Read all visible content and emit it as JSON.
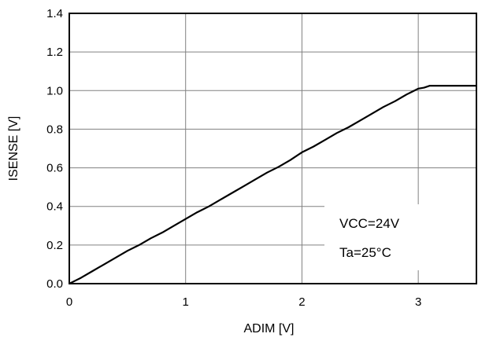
{
  "chart_data": {
    "type": "line",
    "xlabel": "ADIM [V]",
    "ylabel": "ISENSE [V]",
    "xlim": [
      0,
      3.5
    ],
    "ylim": [
      0,
      1.4
    ],
    "xticks": [
      0,
      1,
      2,
      3
    ],
    "xtick_labels": [
      "0",
      "1",
      "2",
      "3"
    ],
    "yticks": [
      0.0,
      0.2,
      0.4,
      0.6,
      0.8,
      1.0,
      1.2,
      1.4
    ],
    "ytick_labels": [
      "0.0",
      "0.2",
      "0.4",
      "0.6",
      "0.8",
      "1.0",
      "1.2",
      "1.4"
    ],
    "grid": true,
    "annotations": [
      "VCC=24V",
      "Ta=25°C"
    ],
    "series": [
      {
        "x": [
          0,
          0.05,
          0.1,
          0.2,
          0.3,
          0.4,
          0.5,
          0.6,
          0.7,
          0.8,
          0.9,
          1.0,
          1.1,
          1.2,
          1.3,
          1.4,
          1.5,
          1.6,
          1.7,
          1.8,
          1.9,
          2.0,
          2.1,
          2.2,
          2.3,
          2.4,
          2.5,
          2.6,
          2.7,
          2.8,
          2.9,
          2.95,
          3.0,
          3.05,
          3.1,
          3.2,
          3.3,
          3.4,
          3.5
        ],
        "y": [
          0.0,
          0.015,
          0.03,
          0.065,
          0.1,
          0.135,
          0.17,
          0.2,
          0.235,
          0.265,
          0.3,
          0.335,
          0.37,
          0.4,
          0.435,
          0.47,
          0.505,
          0.54,
          0.575,
          0.605,
          0.64,
          0.68,
          0.71,
          0.745,
          0.78,
          0.81,
          0.845,
          0.88,
          0.915,
          0.945,
          0.98,
          0.995,
          1.01,
          1.015,
          1.025,
          1.025,
          1.025,
          1.025,
          1.025
        ]
      }
    ]
  },
  "colors": {
    "line": "#000000",
    "grid": "#808080",
    "frame": "#000000",
    "annotation_box_fill": "#ffffff"
  }
}
